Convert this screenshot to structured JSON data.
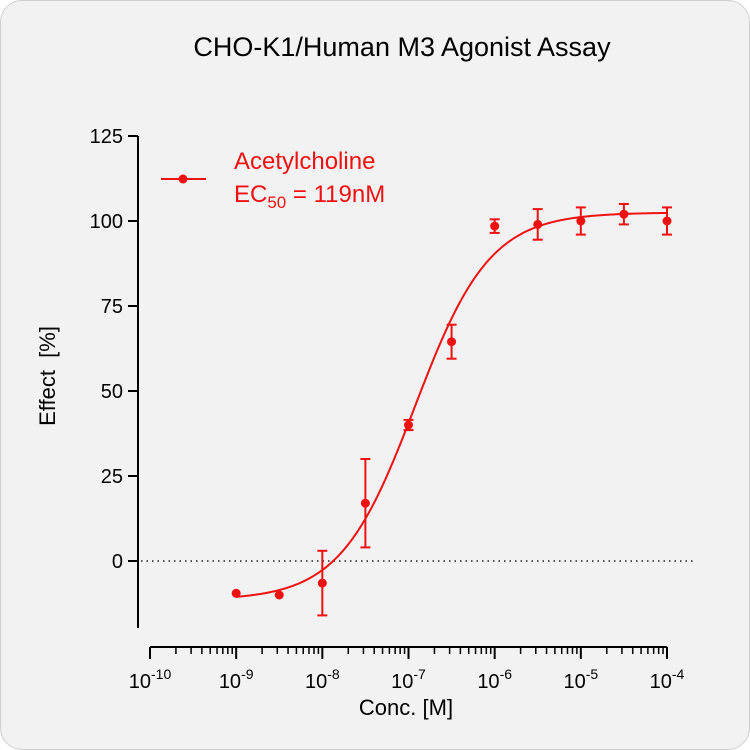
{
  "chart_data": {
    "type": "scatter",
    "title": "CHO-K1/Human M3 Agonist Assay",
    "xlabel": "Conc. [M]",
    "ylabel": "Effect  [%]",
    "x_scale": "log",
    "xlim": [
      1e-10,
      0.0001
    ],
    "ylim": [
      -15,
      125
    ],
    "x_tick_labels": [
      {
        "base": "10",
        "exp": "-10"
      },
      {
        "base": "10",
        "exp": "-9"
      },
      {
        "base": "10",
        "exp": "-8"
      },
      {
        "base": "10",
        "exp": "-7"
      },
      {
        "base": "10",
        "exp": "-6"
      },
      {
        "base": "10",
        "exp": "-5"
      },
      {
        "base": "10",
        "exp": "-4"
      }
    ],
    "y_ticks": [
      0,
      25,
      50,
      75,
      100,
      125
    ],
    "y_tick_labels": [
      "0",
      "25",
      "50",
      "75",
      "100",
      "125"
    ],
    "reference_line": {
      "y": 0,
      "style": "dotted"
    },
    "legend": {
      "placement": "top-left",
      "series_label": "Acetylcholine",
      "ec_prefix": "EC",
      "ec_subscript": "50",
      "ec_value": " = 119nM"
    },
    "series": [
      {
        "name": "Acetylcholine",
        "color": "#ee1111",
        "points": [
          {
            "x": 1e-09,
            "y": -9.5,
            "err": 0.5
          },
          {
            "x": 3.16e-09,
            "y": -10,
            "err": 0.5
          },
          {
            "x": 1e-08,
            "y": -6.5,
            "err": 9.5
          },
          {
            "x": 3.16e-08,
            "y": 17,
            "err": 13
          },
          {
            "x": 1e-07,
            "y": 40,
            "err": 1.5
          },
          {
            "x": 3.16e-07,
            "y": 64.5,
            "err": 5
          },
          {
            "x": 1e-06,
            "y": 98.5,
            "err": 2
          },
          {
            "x": 3.16e-06,
            "y": 99,
            "err": 4.5
          },
          {
            "x": 1e-05,
            "y": 100,
            "err": 4
          },
          {
            "x": 3.16e-05,
            "y": 102,
            "err": 3
          },
          {
            "x": 0.0001,
            "y": 100,
            "err": 4
          }
        ],
        "fit": {
          "bottom": -11.5,
          "top": 102.5,
          "ec50": 1.19e-07,
          "hill": 1
        }
      }
    ]
  }
}
